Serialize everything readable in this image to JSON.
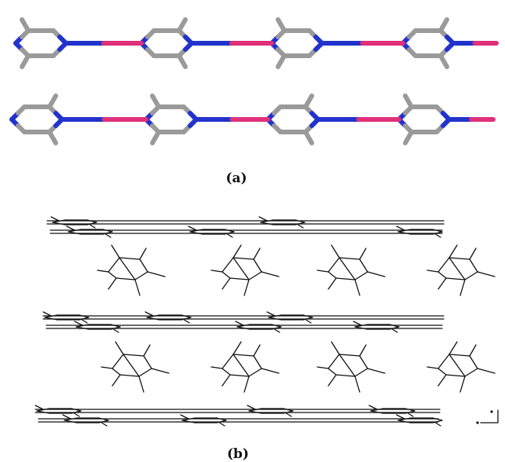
{
  "figure": {
    "panels": [
      {
        "label": "(a)",
        "rendering": "stick-model",
        "chains": 2,
        "rings_per_chain": 4
      },
      {
        "label": "(b)",
        "rendering": "wireframe-packing",
        "chain_layers": 3,
        "molecule_layers": 2,
        "molecules_per_layer": 4
      }
    ],
    "colors": {
      "carbon": "#9a9a9a",
      "nitrogen": "#2233cc",
      "metal_link": "#e0307a",
      "wireframe": "#111111"
    }
  }
}
